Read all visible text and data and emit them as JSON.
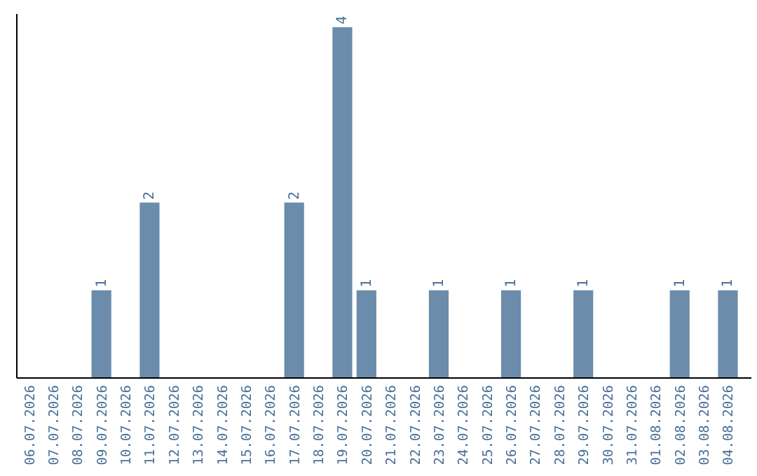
{
  "chart_data": {
    "type": "bar",
    "categories": [
      "06.07.2026",
      "07.07.2026",
      "08.07.2026",
      "09.07.2026",
      "10.07.2026",
      "11.07.2026",
      "12.07.2026",
      "13.07.2026",
      "14.07.2026",
      "15.07.2026",
      "16.07.2026",
      "17.07.2026",
      "18.07.2026",
      "19.07.2026",
      "20.07.2026",
      "21.07.2026",
      "22.07.2026",
      "23.07.2026",
      "24.07.2026",
      "25.07.2026",
      "26.07.2026",
      "27.07.2026",
      "28.07.2026",
      "29.07.2026",
      "30.07.2026",
      "31.07.2026",
      "01.08.2026",
      "02.08.2026",
      "03.08.2026",
      "04.08.2026"
    ],
    "values": [
      0,
      0,
      0,
      1,
      0,
      2,
      0,
      0,
      0,
      0,
      0,
      2,
      0,
      4,
      1,
      0,
      0,
      1,
      0,
      0,
      1,
      0,
      0,
      1,
      0,
      0,
      0,
      1,
      0,
      1
    ],
    "value_labels": [
      null,
      null,
      null,
      "1",
      null,
      "2",
      null,
      null,
      null,
      null,
      null,
      "2",
      null,
      "4",
      "1",
      null,
      null,
      "1",
      null,
      null,
      "1",
      null,
      null,
      "1",
      null,
      null,
      null,
      "1",
      null,
      "1"
    ],
    "color": "#6b8caa",
    "ylim": [
      0,
      4.15
    ],
    "tick_labels": "x"
  }
}
